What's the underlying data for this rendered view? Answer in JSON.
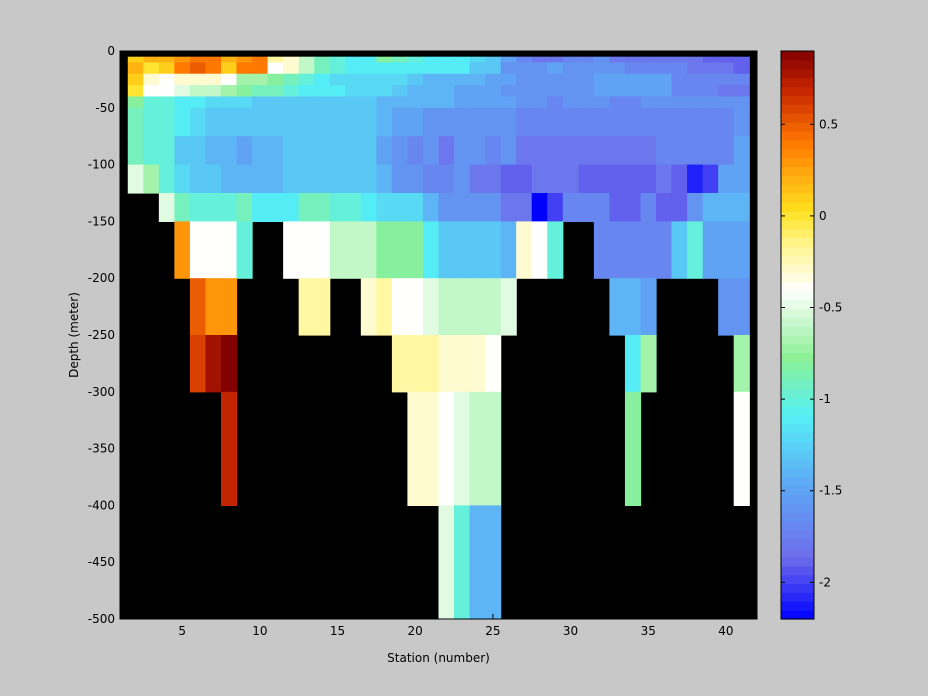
{
  "chart_data": {
    "type": "heatmap",
    "title": "",
    "xlabel": "Station (number)",
    "ylabel": "Depth (meter)",
    "xlim": [
      1,
      42
    ],
    "ylim": [
      -500,
      0
    ],
    "x_ticks": [
      5,
      10,
      15,
      20,
      25,
      30,
      35,
      40
    ],
    "y_ticks": [
      0,
      -50,
      -100,
      -150,
      -200,
      -250,
      -300,
      -350,
      -400,
      -450,
      -500
    ],
    "colorbar": {
      "colormap": "jet-like (blue → cyan → white → yellow → orange → dark red)",
      "range": [
        -2.2,
        0.9
      ],
      "ticks": [
        0.5,
        0,
        -0.5,
        -1,
        -1.5,
        -2
      ],
      "tick_labels": [
        "0.5",
        "0",
        "-0.5",
        "-1",
        "-1.5",
        "-2"
      ]
    },
    "no_data_color": "#000000",
    "stations": [
      2,
      3,
      4,
      5,
      6,
      7,
      8,
      9,
      10,
      11,
      12,
      13,
      14,
      15,
      16,
      17,
      18,
      19,
      20,
      21,
      22,
      23,
      24,
      25,
      26,
      27,
      28,
      29,
      30,
      31,
      32,
      33,
      34,
      35,
      36,
      37,
      38,
      39,
      40,
      41
    ],
    "depth_bins": [
      -10,
      -20,
      -30,
      -40,
      -50,
      -75,
      -100,
      -125,
      -150,
      -200,
      -250,
      -300,
      -400,
      -500
    ],
    "values": [
      [
        0.1,
        0.2,
        0.2,
        0.3,
        0.4,
        0.4,
        0.2,
        0.3,
        0.4,
        -0.2,
        -0.3,
        -0.6,
        -0.9,
        -1.0,
        -1.1,
        -1.1,
        -0.8,
        -0.9,
        -1.0,
        -1.1,
        -1.1,
        -1.1,
        -1.2,
        -1.3,
        -1.5,
        -1.7,
        -1.8,
        -1.8,
        -1.7,
        -1.7,
        -1.6,
        -1.8,
        -1.8,
        -1.8,
        -1.8,
        -1.8,
        -1.8,
        -1.9,
        -1.9,
        -1.9
      ],
      [
        0.2,
        0.0,
        0.1,
        0.4,
        0.5,
        0.4,
        0.1,
        0.4,
        0.4,
        -0.4,
        -0.3,
        -0.6,
        -0.9,
        -1.0,
        -1.1,
        -1.1,
        -1.1,
        -1.1,
        -1.1,
        -1.1,
        -1.1,
        -1.1,
        -1.3,
        -1.3,
        -1.6,
        -1.6,
        -1.6,
        -1.5,
        -1.6,
        -1.6,
        -1.6,
        -1.6,
        -1.7,
        -1.7,
        -1.7,
        -1.7,
        -1.8,
        -1.8,
        -1.8,
        -1.9
      ],
      [
        0.1,
        -0.3,
        -0.4,
        -0.3,
        -0.3,
        -0.3,
        -0.4,
        -0.7,
        -0.7,
        -0.8,
        -0.9,
        -1.0,
        -1.1,
        -1.2,
        -1.2,
        -1.2,
        -1.2,
        -1.2,
        -1.3,
        -1.4,
        -1.4,
        -1.4,
        -1.4,
        -1.5,
        -1.5,
        -1.6,
        -1.6,
        -1.6,
        -1.6,
        -1.6,
        -1.5,
        -1.5,
        -1.5,
        -1.5,
        -1.5,
        -1.7,
        -1.7,
        -1.7,
        -1.7,
        -1.7
      ],
      [
        0.0,
        -0.4,
        -0.4,
        -0.5,
        -0.6,
        -0.6,
        -0.7,
        -0.8,
        -0.9,
        -0.9,
        -1.0,
        -1.1,
        -1.1,
        -1.1,
        -1.2,
        -1.2,
        -1.2,
        -1.3,
        -1.4,
        -1.4,
        -1.4,
        -1.5,
        -1.5,
        -1.5,
        -1.6,
        -1.6,
        -1.6,
        -1.6,
        -1.6,
        -1.6,
        -1.5,
        -1.5,
        -1.5,
        -1.5,
        -1.5,
        -1.7,
        -1.7,
        -1.7,
        -1.8,
        -1.8
      ],
      [
        -0.8,
        -1.0,
        -1.0,
        -1.1,
        -1.1,
        -1.2,
        -1.2,
        -1.2,
        -1.3,
        -1.3,
        -1.3,
        -1.3,
        -1.3,
        -1.3,
        -1.3,
        -1.3,
        -1.4,
        -1.4,
        -1.4,
        -1.4,
        -1.4,
        -1.5,
        -1.5,
        -1.5,
        -1.5,
        -1.6,
        -1.6,
        -1.7,
        -1.6,
        -1.6,
        -1.6,
        -1.7,
        -1.7,
        -1.6,
        -1.6,
        -1.6,
        -1.6,
        -1.6,
        -1.6,
        -1.6
      ],
      [
        -0.9,
        -1.0,
        -1.0,
        -1.1,
        -1.2,
        -1.3,
        -1.3,
        -1.3,
        -1.3,
        -1.3,
        -1.3,
        -1.3,
        -1.3,
        -1.3,
        -1.3,
        -1.3,
        -1.4,
        -1.5,
        -1.5,
        -1.6,
        -1.6,
        -1.6,
        -1.6,
        -1.6,
        -1.6,
        -1.7,
        -1.7,
        -1.7,
        -1.7,
        -1.7,
        -1.7,
        -1.7,
        -1.7,
        -1.7,
        -1.7,
        -1.7,
        -1.7,
        -1.7,
        -1.7,
        -1.6
      ],
      [
        -0.9,
        -1.0,
        -1.0,
        -1.3,
        -1.3,
        -1.4,
        -1.4,
        -1.5,
        -1.4,
        -1.4,
        -1.3,
        -1.3,
        -1.3,
        -1.3,
        -1.3,
        -1.3,
        -1.5,
        -1.6,
        -1.7,
        -1.6,
        -1.8,
        -1.6,
        -1.6,
        -1.7,
        -1.6,
        -1.8,
        -1.8,
        -1.8,
        -1.8,
        -1.8,
        -1.8,
        -1.8,
        -1.8,
        -1.8,
        -1.7,
        -1.7,
        -1.7,
        -1.7,
        -1.7,
        -1.5
      ],
      [
        -0.5,
        -0.7,
        -1.0,
        -1.2,
        -1.3,
        -1.3,
        -1.4,
        -1.4,
        -1.4,
        -1.4,
        -1.3,
        -1.3,
        -1.3,
        -1.3,
        -1.3,
        -1.3,
        -1.4,
        -1.6,
        -1.6,
        -1.7,
        -1.7,
        -1.6,
        -1.8,
        -1.8,
        -1.9,
        -1.9,
        -1.8,
        -1.8,
        -1.8,
        -1.9,
        -1.9,
        -1.9,
        -1.9,
        -1.9,
        -1.8,
        -1.9,
        -2.1,
        -2.0,
        -1.5,
        -1.5
      ],
      [
        null,
        null,
        -0.5,
        -0.9,
        -1.0,
        -1.0,
        -1.0,
        -0.9,
        -1.1,
        -1.1,
        -1.1,
        -0.9,
        -0.9,
        -1.0,
        -1.0,
        -1.1,
        -1.2,
        -1.2,
        -1.2,
        -1.4,
        -1.6,
        -1.6,
        -1.6,
        -1.6,
        -1.8,
        -1.8,
        -2.2,
        -2.0,
        -1.7,
        -1.7,
        -1.7,
        -1.9,
        -1.9,
        -1.7,
        -1.9,
        -1.9,
        -1.6,
        -1.4,
        -1.4,
        -1.4
      ],
      [
        null,
        null,
        null,
        0.3,
        -0.4,
        -0.4,
        -0.4,
        -1.0,
        null,
        null,
        -0.4,
        -0.4,
        -0.4,
        -0.6,
        -0.6,
        -0.6,
        -0.8,
        -0.8,
        -0.8,
        -1.1,
        -1.3,
        -1.3,
        -1.3,
        -1.3,
        -1.4,
        -0.3,
        -0.4,
        -1.0,
        null,
        null,
        -1.7,
        -1.7,
        -1.7,
        -1.7,
        -1.7,
        -1.3,
        -1.0,
        -1.5,
        -1.5,
        -1.5
      ],
      [
        null,
        null,
        null,
        null,
        0.5,
        0.3,
        0.3,
        null,
        null,
        null,
        null,
        -0.2,
        -0.2,
        null,
        null,
        -0.3,
        -0.2,
        -0.4,
        -0.4,
        -0.5,
        -0.6,
        -0.6,
        -0.6,
        -0.6,
        -0.5,
        null,
        null,
        null,
        null,
        null,
        null,
        -1.4,
        -1.4,
        -1.5,
        null,
        null,
        null,
        null,
        -1.6,
        -1.6
      ],
      [
        null,
        null,
        null,
        null,
        0.6,
        0.8,
        0.9,
        null,
        null,
        null,
        null,
        null,
        null,
        null,
        null,
        null,
        null,
        -0.2,
        -0.2,
        -0.2,
        -0.3,
        -0.3,
        -0.3,
        -0.4,
        null,
        null,
        null,
        null,
        null,
        null,
        null,
        null,
        -1.1,
        -0.7,
        null,
        null,
        null,
        null,
        null,
        -0.7
      ],
      [
        null,
        null,
        null,
        null,
        null,
        null,
        0.7,
        null,
        null,
        null,
        null,
        null,
        null,
        null,
        null,
        null,
        null,
        null,
        -0.3,
        -0.3,
        -0.4,
        -0.5,
        -0.6,
        -0.6,
        null,
        null,
        null,
        null,
        null,
        null,
        null,
        null,
        -0.8,
        null,
        null,
        null,
        null,
        null,
        null,
        -0.4
      ],
      [
        null,
        null,
        null,
        null,
        null,
        null,
        null,
        null,
        null,
        null,
        null,
        null,
        null,
        null,
        null,
        null,
        null,
        null,
        null,
        null,
        -0.5,
        -1.0,
        -1.4,
        -1.4,
        null,
        null,
        null,
        null,
        null,
        null,
        null,
        null,
        null,
        null,
        null,
        null,
        null,
        null,
        null,
        null
      ]
    ]
  }
}
